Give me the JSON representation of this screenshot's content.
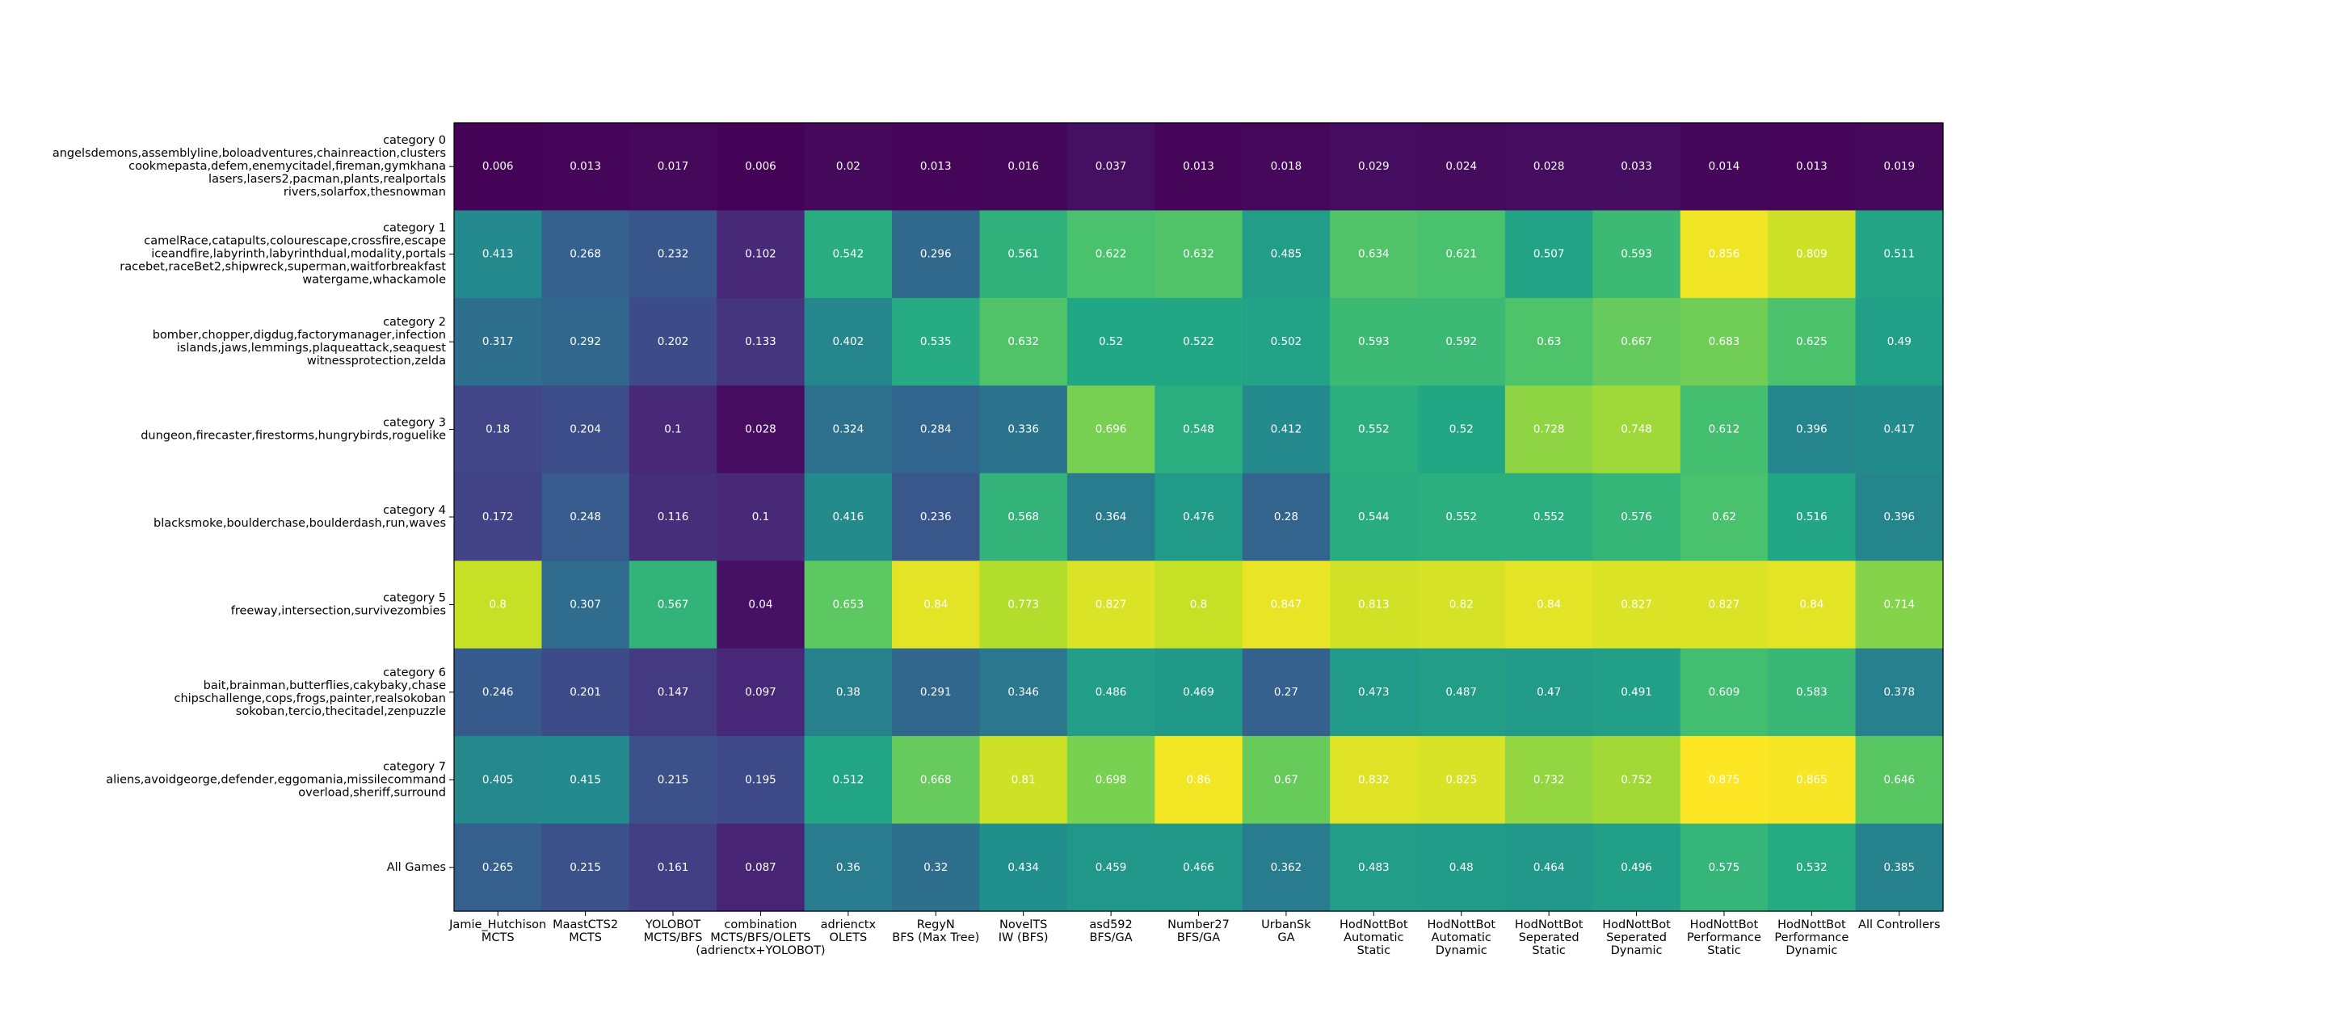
{
  "chart_data": {
    "type": "heatmap",
    "colormap": "viridis",
    "value_range": [
      0,
      0.875
    ],
    "rows": [
      {
        "lines": [
          "category 0",
          "angelsdemons,assemblyline,boloadventures,chainreaction,clusters",
          "cookmepasta,defem,enemycitadel,fireman,gymkhana",
          "lasers,lasers2,pacman,plants,realportals",
          "rivers,solarfox,thesnowman"
        ]
      },
      {
        "lines": [
          "category 1",
          "camelRace,catapults,colourescape,crossfire,escape",
          "iceandfire,labyrinth,labyrinthdual,modality,portals",
          "racebet,raceBet2,shipwreck,superman,waitforbreakfast",
          "watergame,whackamole"
        ]
      },
      {
        "lines": [
          "category 2",
          "bomber,chopper,digdug,factorymanager,infection",
          "islands,jaws,lemmings,plaqueattack,seaquest",
          "witnessprotection,zelda"
        ]
      },
      {
        "lines": [
          "category 3",
          "dungeon,firecaster,firestorms,hungrybirds,roguelike"
        ]
      },
      {
        "lines": [
          "category 4",
          "blacksmoke,boulderchase,boulderdash,run,waves"
        ]
      },
      {
        "lines": [
          "category 5",
          "freeway,intersection,survivezombies"
        ]
      },
      {
        "lines": [
          "category 6",
          "bait,brainman,butterflies,cakybaky,chase",
          "chipschallenge,cops,frogs,painter,realsokoban",
          "sokoban,tercio,thecitadel,zenpuzzle"
        ]
      },
      {
        "lines": [
          "category 7",
          "aliens,avoidgeorge,defender,eggomania,missilecommand",
          "overload,sheriff,surround"
        ]
      },
      {
        "lines": [
          "All Games"
        ]
      }
    ],
    "columns": [
      {
        "lines": [
          "Jamie_Hutchison",
          "MCTS"
        ]
      },
      {
        "lines": [
          "MaastCTS2",
          "MCTS"
        ]
      },
      {
        "lines": [
          "YOLOBOT",
          "MCTS/BFS"
        ]
      },
      {
        "lines": [
          "combination",
          "MCTS/BFS/OLETS",
          "(adrienctx+YOLOBOT)"
        ]
      },
      {
        "lines": [
          "adrienctx",
          "OLETS"
        ]
      },
      {
        "lines": [
          "RegyN",
          "BFS (Max Tree)"
        ]
      },
      {
        "lines": [
          "NovelTS",
          "IW (BFS)"
        ]
      },
      {
        "lines": [
          "asd592",
          "BFS/GA"
        ]
      },
      {
        "lines": [
          "Number27",
          "BFS/GA"
        ]
      },
      {
        "lines": [
          "UrbanSk",
          "GA"
        ]
      },
      {
        "lines": [
          "HodNottBot",
          "Automatic",
          "Static"
        ]
      },
      {
        "lines": [
          "HodNottBot",
          "Automatic",
          "Dynamic"
        ]
      },
      {
        "lines": [
          "HodNottBot",
          "Seperated",
          "Static"
        ]
      },
      {
        "lines": [
          "HodNottBot",
          "Seperated",
          "Dynamic"
        ]
      },
      {
        "lines": [
          "HodNottBot",
          "Performance",
          "Static"
        ]
      },
      {
        "lines": [
          "HodNottBot",
          "Performance",
          "Dynamic"
        ]
      },
      {
        "lines": [
          "All Controllers"
        ]
      }
    ],
    "values": [
      [
        0.006,
        0.013,
        0.017,
        0.006,
        0.02,
        0.013,
        0.016,
        0.037,
        0.013,
        0.018,
        0.029,
        0.024,
        0.028,
        0.033,
        0.014,
        0.013,
        0.019
      ],
      [
        0.413,
        0.268,
        0.232,
        0.102,
        0.542,
        0.296,
        0.561,
        0.622,
        0.632,
        0.485,
        0.634,
        0.621,
        0.507,
        0.593,
        0.856,
        0.809,
        0.511
      ],
      [
        0.317,
        0.292,
        0.202,
        0.133,
        0.402,
        0.535,
        0.632,
        0.52,
        0.522,
        0.502,
        0.593,
        0.592,
        0.63,
        0.667,
        0.683,
        0.625,
        0.49
      ],
      [
        0.18,
        0.204,
        0.1,
        0.028,
        0.324,
        0.284,
        0.336,
        0.696,
        0.548,
        0.412,
        0.552,
        0.52,
        0.728,
        0.748,
        0.612,
        0.396,
        0.417
      ],
      [
        0.172,
        0.248,
        0.116,
        0.1,
        0.416,
        0.236,
        0.568,
        0.364,
        0.476,
        0.28,
        0.544,
        0.552,
        0.552,
        0.576,
        0.62,
        0.516,
        0.396
      ],
      [
        0.8,
        0.307,
        0.567,
        0.04,
        0.653,
        0.84,
        0.773,
        0.827,
        0.8,
        0.847,
        0.813,
        0.82,
        0.84,
        0.827,
        0.827,
        0.84,
        0.714
      ],
      [
        0.246,
        0.201,
        0.147,
        0.097,
        0.38,
        0.291,
        0.346,
        0.486,
        0.469,
        0.27,
        0.473,
        0.487,
        0.47,
        0.491,
        0.609,
        0.583,
        0.378
      ],
      [
        0.405,
        0.415,
        0.215,
        0.195,
        0.512,
        0.668,
        0.81,
        0.698,
        0.86,
        0.67,
        0.832,
        0.825,
        0.732,
        0.752,
        0.875,
        0.865,
        0.646
      ],
      [
        0.265,
        0.215,
        0.161,
        0.087,
        0.36,
        0.32,
        0.434,
        0.459,
        0.466,
        0.362,
        0.483,
        0.48,
        0.464,
        0.496,
        0.575,
        0.532,
        0.385
      ]
    ]
  }
}
